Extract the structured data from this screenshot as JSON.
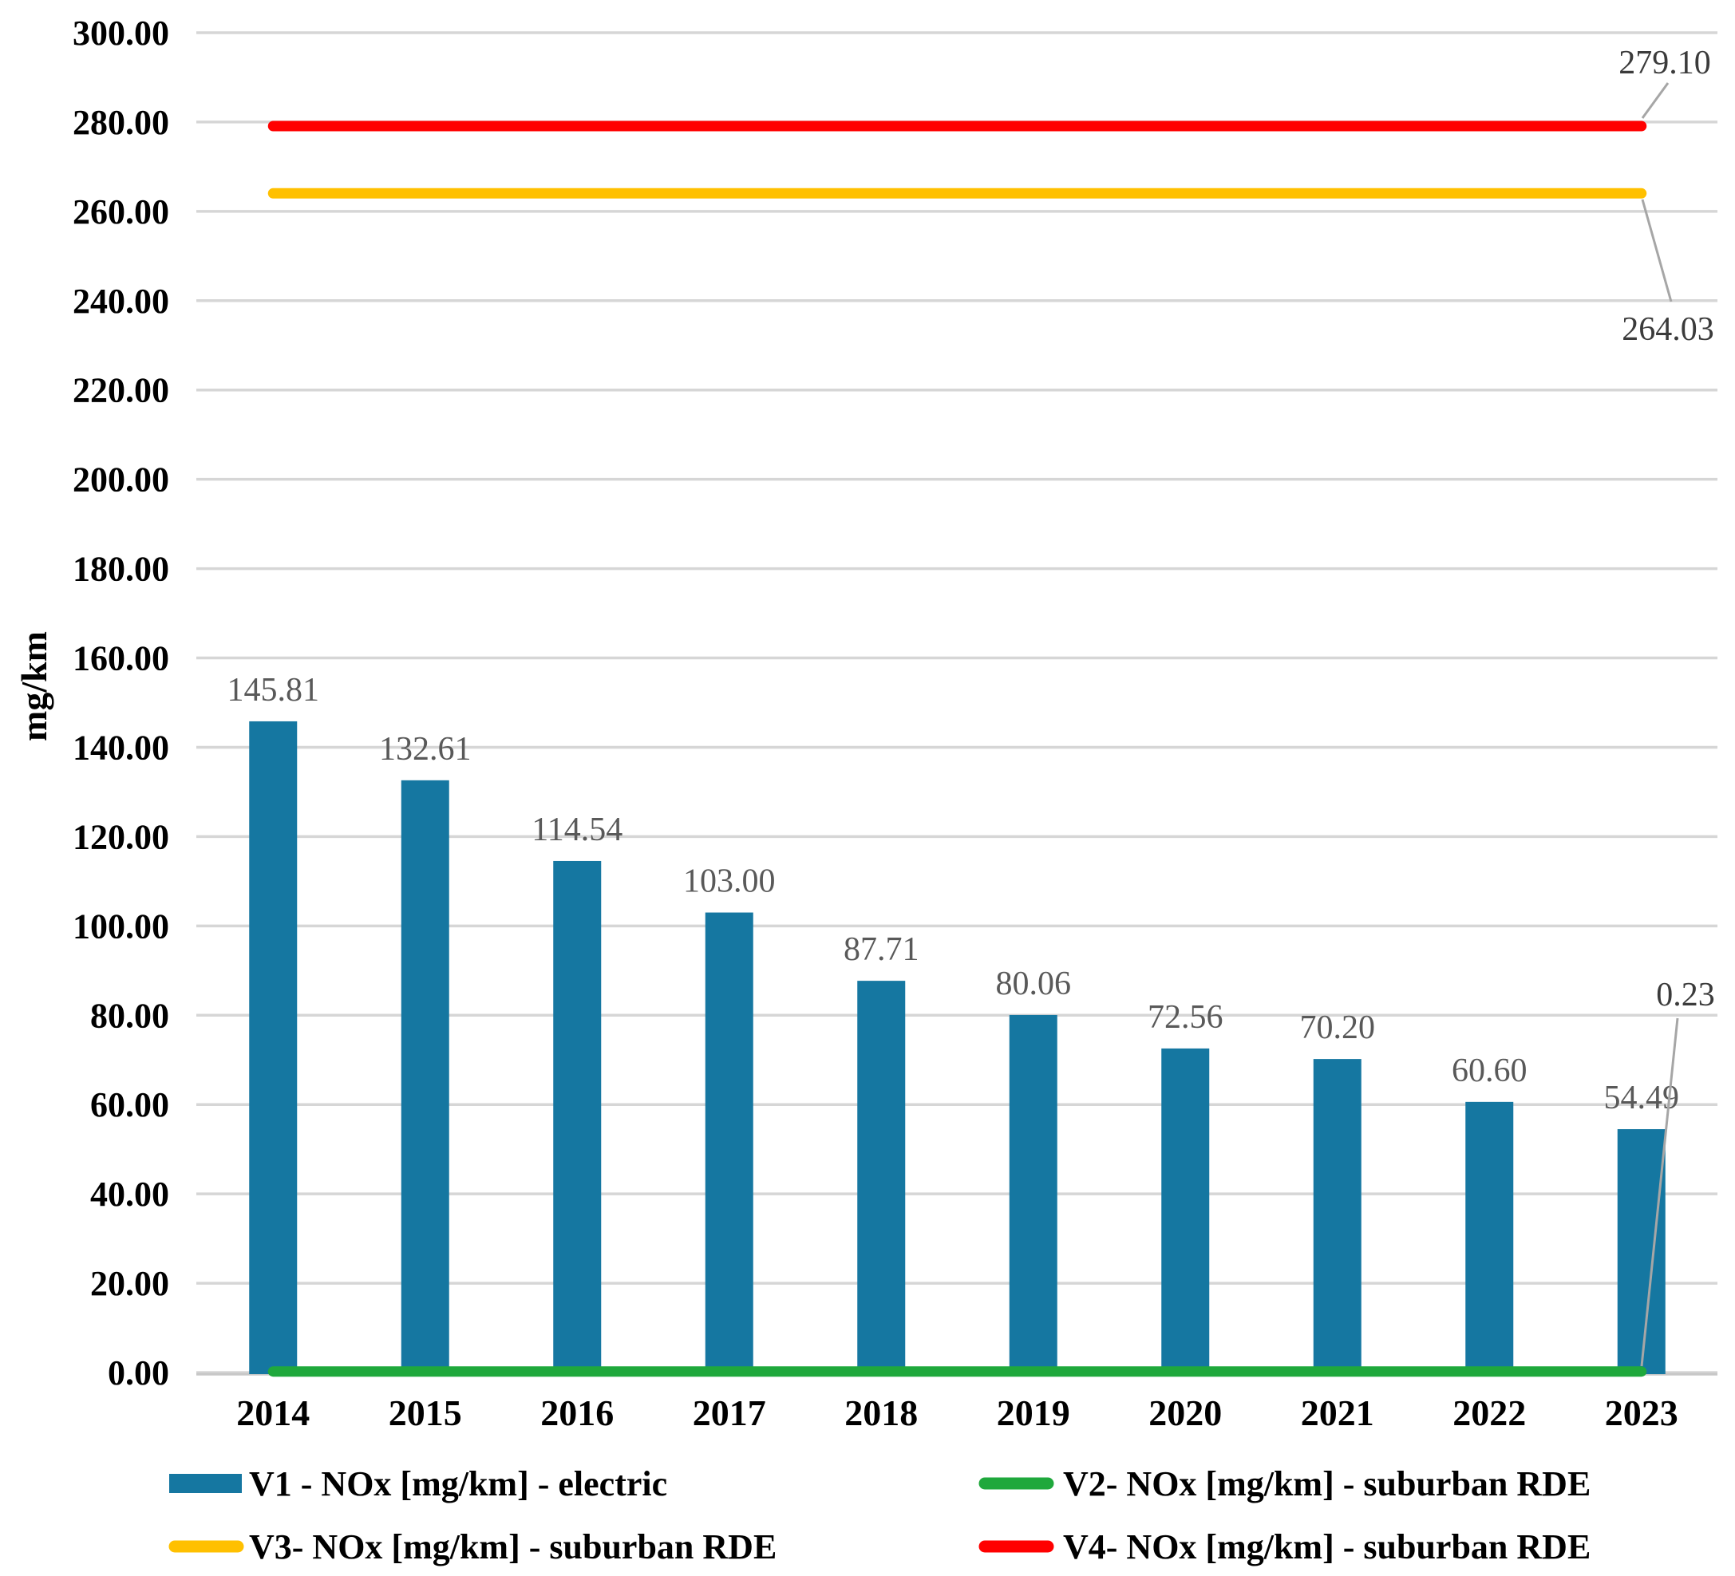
{
  "chart_data": {
    "type": "bar",
    "title": "",
    "xlabel": "",
    "ylabel": "mg/km",
    "ylim": [
      0,
      300
    ],
    "ytick_step": 20,
    "ytick_labels": [
      "0.00",
      "20.00",
      "40.00",
      "60.00",
      "80.00",
      "100.00",
      "120.00",
      "140.00",
      "160.00",
      "180.00",
      "200.00",
      "220.00",
      "240.00",
      "260.00",
      "280.00",
      "300.00"
    ],
    "grid": "horizontal-on",
    "legend_position": "bottom-two-columns",
    "categories": [
      "2014",
      "2015",
      "2016",
      "2017",
      "2018",
      "2019",
      "2020",
      "2021",
      "2022",
      "2023"
    ],
    "series": [
      {
        "name": "V1 - NOx [mg/km] - electric",
        "type": "bar",
        "color": "#1577A1",
        "values": [
          145.81,
          132.61,
          114.54,
          103.0,
          87.71,
          80.06,
          72.56,
          70.2,
          60.6,
          54.49
        ],
        "value_labels": [
          "145.81",
          "132.61",
          "114.54",
          "103.00",
          "87.71",
          "80.06",
          "72.56",
          "70.20",
          "60.60",
          "54.49"
        ]
      },
      {
        "name": "V2- NOx [mg/km] - suburban RDE",
        "type": "line",
        "color": "#1FA83C",
        "value": 0.23,
        "annotation": "0.23"
      },
      {
        "name": "V3- NOx [mg/km] - suburban RDE",
        "type": "line",
        "color": "#FFC000",
        "value": 264.03,
        "annotation": "264.03"
      },
      {
        "name": "V4- NOx [mg/km] - suburban RDE",
        "type": "line",
        "color": "#FF0000",
        "value": 279.1,
        "annotation": "279.10"
      }
    ],
    "style": {
      "gridline_color": "#D6D6D6",
      "axis_line_color": "#C8C8C8",
      "tick_label_color": "#000000",
      "bar_label_color": "#595959",
      "annotation_color": "#3B3B3B",
      "leader_line_color": "#A6A6A6"
    }
  }
}
